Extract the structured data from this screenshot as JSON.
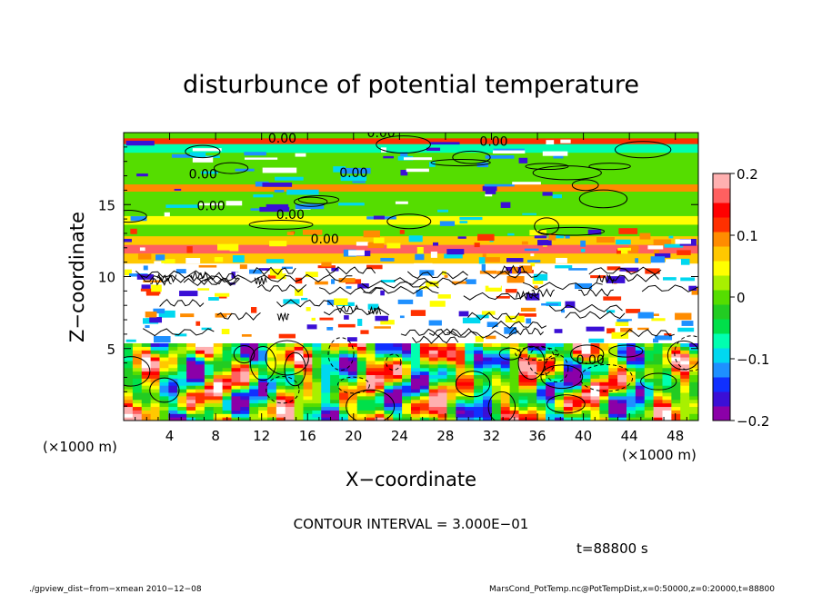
{
  "chart_data": {
    "type": "heatmap",
    "title": "disturbunce of potential temperature",
    "xlabel": "X−coordinate",
    "ylabel": "Z−coordinate",
    "x_unit_left": "(×1000 m)",
    "x_unit_right": "(×1000 m)",
    "xlim": [
      0,
      50
    ],
    "ylim": [
      0,
      20
    ],
    "x_ticks": [
      "4",
      "8",
      "12",
      "16",
      "20",
      "24",
      "28",
      "32",
      "36",
      "40",
      "44",
      "48"
    ],
    "x_tick_values": [
      4,
      8,
      12,
      16,
      20,
      24,
      28,
      32,
      36,
      40,
      44,
      48
    ],
    "y_ticks": [
      "5",
      "10",
      "15"
    ],
    "y_tick_values": [
      5,
      10,
      15
    ],
    "colorbar": {
      "min": -0.2,
      "max": 0.2,
      "tick_labels": [
        "0.2",
        "0.1",
        "0",
        "−0.1",
        "−0.2"
      ],
      "tick_values": [
        0.2,
        0.1,
        0,
        -0.1,
        -0.2
      ],
      "colors": [
        "#8b00a8",
        "#3b0fd6",
        "#1030ff",
        "#1e90ff",
        "#00d8f0",
        "#00ffb0",
        "#00e04a",
        "#22cc22",
        "#55dd00",
        "#a8f000",
        "#ffff00",
        "#ffc800",
        "#ff8c00",
        "#ff3000",
        "#ff0000",
        "#ff6060",
        "#ffb0b0"
      ]
    },
    "contour_labels": [
      "0.00",
      "0.00",
      "0.00",
      "0.00",
      "0.00",
      "0.00",
      "0.00",
      "0.00",
      "0.00"
    ],
    "bands": [
      {
        "z0": 19.6,
        "z1": 20.0,
        "value": 0.0
      },
      {
        "z0": 19.2,
        "z1": 19.6,
        "value": 0.12
      },
      {
        "z0": 18.6,
        "z1": 19.2,
        "value": -0.08
      },
      {
        "z0": 16.4,
        "z1": 18.6,
        "value": 0.0
      },
      {
        "z0": 15.9,
        "z1": 16.4,
        "value": 0.1
      },
      {
        "z0": 14.2,
        "z1": 15.9,
        "value": 0.01
      },
      {
        "z0": 13.6,
        "z1": 14.2,
        "value": 0.05
      },
      {
        "z0": 12.8,
        "z1": 13.6,
        "value": 0.0
      },
      {
        "z0": 12.2,
        "z1": 12.8,
        "value": 0.08
      },
      {
        "z0": 11.6,
        "z1": 12.2,
        "value": 0.16
      },
      {
        "z0": 10.9,
        "z1": 11.6,
        "value": 0.06
      },
      {
        "z0": 5.4,
        "z1": 10.9,
        "value": 0.25
      }
    ]
  },
  "annotations": {
    "contour_interval": "CONTOUR INTERVAL = 3.000E−01",
    "time": "t=88800 s",
    "footer_left": "./gpview_dist−from−xmean  2010−12−08",
    "footer_right": "MarsCond_PotTemp.nc@PotTempDist,x=0:50000,z=0:20000,t=88800"
  }
}
